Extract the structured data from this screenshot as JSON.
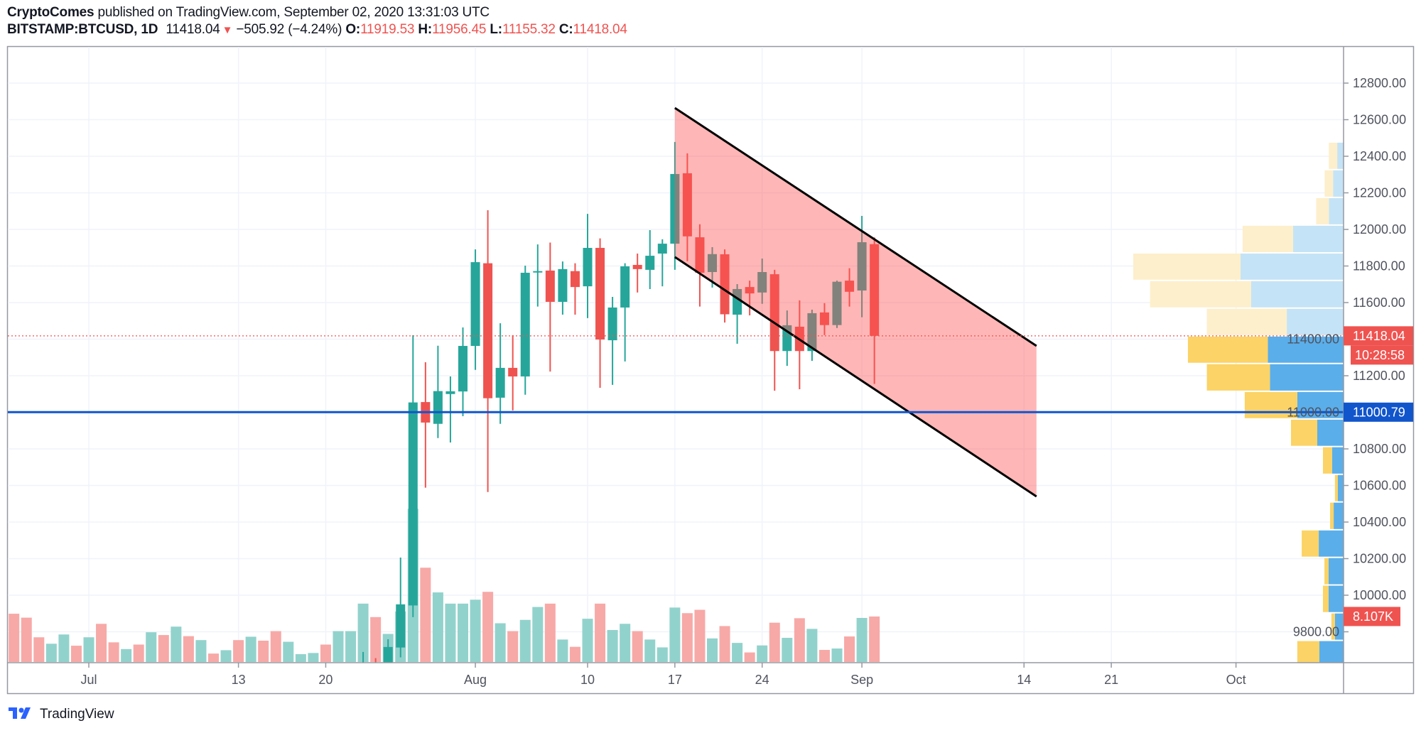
{
  "header": {
    "author": "CryptoComes",
    "published": "published on TradingView.com, September 02, 2020 13:31:03 UTC",
    "symbol": "BITSTAMP:BTCUSD, 1D",
    "last": "11418.04",
    "change_icon": "triangle-down-icon",
    "change": "−505.92 (−4.24%)",
    "o_label": "O:",
    "o": "11919.53",
    "h_label": "H:",
    "h": "11956.45",
    "l_label": "L:",
    "l": "11155.32",
    "c_label": "C:",
    "c": "11418.04"
  },
  "footer": {
    "brand": "TradingView",
    "logo_icon": "tradingview-logo-icon"
  },
  "colors": {
    "up": "#26a69a",
    "down": "#ef5350",
    "channel": "#ff5252",
    "support": "#1155cc",
    "profile_up": "#5aaeea",
    "profile_down": "#fbd366",
    "profile_up_light": "#c5e3f6",
    "profile_down_light": "#fdefcb"
  },
  "chart_data": {
    "type": "candlestick",
    "ylim": [
      9640,
      12990
    ],
    "xlim": [
      "2020-06-24",
      "2020-10-08"
    ],
    "grid": true,
    "price_ticks": [
      "12800.00",
      "12600.00",
      "12400.00",
      "12200.00",
      "12000.00",
      "11800.00",
      "11600.00",
      "11400.00",
      "11200.00",
      "11000.00",
      "10800.00",
      "10600.00",
      "10400.00",
      "10200.00",
      "10000.00",
      "9800.00"
    ],
    "time_ticks": [
      {
        "label": "Jul",
        "date": "2020-07-01"
      },
      {
        "label": "13",
        "date": "2020-07-13"
      },
      {
        "label": "20",
        "date": "2020-07-20"
      },
      {
        "label": "Aug",
        "date": "2020-08-01"
      },
      {
        "label": "10",
        "date": "2020-08-10"
      },
      {
        "label": "17",
        "date": "2020-08-17"
      },
      {
        "label": "24",
        "date": "2020-08-24"
      },
      {
        "label": "Sep",
        "date": "2020-09-01"
      },
      {
        "label": "14",
        "date": "2020-09-14"
      },
      {
        "label": "21",
        "date": "2020-09-21"
      },
      {
        "label": "Oct",
        "date": "2020-10-01"
      }
    ],
    "candles_columns": [
      "date",
      "open",
      "high",
      "low",
      "close"
    ],
    "candles": [
      [
        "2020-07-23",
        9510,
        9690,
        9400,
        9600
      ],
      [
        "2020-07-24",
        9600,
        9656,
        9500,
        9540
      ],
      [
        "2020-07-25",
        9540,
        9759,
        9450,
        9717
      ],
      [
        "2020-07-26",
        9714,
        10206,
        9660,
        9950
      ],
      [
        "2020-07-27",
        9944,
        11422,
        9880,
        11054
      ],
      [
        "2020-07-28",
        11056,
        11274,
        10588,
        10944
      ],
      [
        "2020-07-29",
        10937,
        11364,
        10859,
        11116
      ],
      [
        "2020-07-30",
        11100,
        11196,
        10835,
        11115
      ],
      [
        "2020-07-31",
        11114,
        11464,
        10979,
        11363
      ],
      [
        "2020-08-01",
        11363,
        11891,
        11232,
        11821
      ],
      [
        "2020-08-02",
        11815,
        12105,
        10564,
        11077
      ],
      [
        "2020-08-03",
        11080,
        11487,
        10937,
        11243
      ],
      [
        "2020-08-04",
        11243,
        11422,
        11010,
        11196
      ],
      [
        "2020-08-05",
        11196,
        11802,
        11096,
        11763
      ],
      [
        "2020-08-06",
        11767,
        11918,
        11578,
        11772
      ],
      [
        "2020-08-07",
        11775,
        11928,
        11223,
        11604
      ],
      [
        "2020-08-08",
        11604,
        11825,
        11534,
        11783
      ],
      [
        "2020-08-09",
        11772,
        11815,
        11534,
        11685
      ],
      [
        "2020-08-10",
        11689,
        12085,
        11515,
        11899
      ],
      [
        "2020-08-11",
        11899,
        11951,
        11134,
        11398
      ],
      [
        "2020-08-12",
        11394,
        11631,
        11150,
        11573
      ],
      [
        "2020-08-13",
        11573,
        11815,
        11278,
        11798
      ],
      [
        "2020-08-14",
        11806,
        11868,
        11655,
        11783
      ],
      [
        "2020-08-15",
        11779,
        11996,
        11674,
        11856
      ],
      [
        "2020-08-16",
        11868,
        11946,
        11689,
        11922
      ],
      [
        "2020-08-17",
        11922,
        12478,
        11779,
        12303
      ],
      [
        "2020-08-18",
        12307,
        12416,
        11826,
        11962
      ],
      [
        "2020-08-19",
        11957,
        12028,
        11578,
        11763
      ],
      [
        "2020-08-20",
        11767,
        11903,
        11682,
        11865
      ],
      [
        "2020-08-21",
        11864,
        11891,
        11491,
        11536
      ],
      [
        "2020-08-22",
        11534,
        11701,
        11375,
        11674
      ],
      [
        "2020-08-23",
        11685,
        11720,
        11530,
        11650
      ],
      [
        "2020-08-24",
        11655,
        11841,
        11593,
        11767
      ],
      [
        "2020-08-25",
        11755,
        11779,
        11118,
        11335
      ],
      [
        "2020-08-26",
        11335,
        11557,
        11254,
        11476
      ],
      [
        "2020-08-27",
        11468,
        11612,
        11126,
        11335
      ],
      [
        "2020-08-28",
        11335,
        11561,
        11281,
        11542
      ],
      [
        "2020-08-29",
        11546,
        11597,
        11422,
        11477
      ],
      [
        "2020-08-30",
        11477,
        11720,
        11461,
        11714
      ],
      [
        "2020-08-31",
        11720,
        11788,
        11578,
        11659
      ],
      [
        "2020-09-01",
        11666,
        12074,
        11520,
        11930
      ],
      [
        "2020-09-02",
        11919.53,
        11956.45,
        11155.32,
        11418.04
      ]
    ],
    "volume_unit": "K",
    "volumes_columns": [
      "date",
      "volume_k",
      "direction"
    ],
    "volumes": [
      [
        "2020-06-24",
        10.0,
        "down"
      ],
      [
        "2020-06-25",
        8.6,
        "down"
      ],
      [
        "2020-06-26",
        7.9,
        "down"
      ],
      [
        "2020-06-27",
        4.4,
        "down"
      ],
      [
        "2020-06-28",
        3.25,
        "up"
      ],
      [
        "2020-06-29",
        4.9,
        "up"
      ],
      [
        "2020-06-30",
        2.9,
        "down"
      ],
      [
        "2020-07-01",
        4.4,
        "up"
      ],
      [
        "2020-07-02",
        6.8,
        "down"
      ],
      [
        "2020-07-03",
        3.5,
        "down"
      ],
      [
        "2020-07-04",
        2.3,
        "up"
      ],
      [
        "2020-07-05",
        3.1,
        "down"
      ],
      [
        "2020-07-06",
        5.3,
        "up"
      ],
      [
        "2020-07-07",
        4.8,
        "down"
      ],
      [
        "2020-07-08",
        6.3,
        "up"
      ],
      [
        "2020-07-09",
        4.6,
        "down"
      ],
      [
        "2020-07-10",
        3.9,
        "up"
      ],
      [
        "2020-07-11",
        1.5,
        "down"
      ],
      [
        "2020-07-12",
        2.1,
        "up"
      ],
      [
        "2020-07-13",
        3.9,
        "down"
      ],
      [
        "2020-07-14",
        4.5,
        "up"
      ],
      [
        "2020-07-15",
        3.8,
        "down"
      ],
      [
        "2020-07-16",
        5.5,
        "down"
      ],
      [
        "2020-07-17",
        3.6,
        "up"
      ],
      [
        "2020-07-18",
        1.4,
        "up"
      ],
      [
        "2020-07-19",
        1.6,
        "up"
      ],
      [
        "2020-07-20",
        3.1,
        "down"
      ],
      [
        "2020-07-21",
        5.5,
        "up"
      ],
      [
        "2020-07-22",
        5.5,
        "up"
      ],
      [
        "2020-07-23",
        10.4,
        "up"
      ],
      [
        "2020-07-24",
        8.0,
        "down"
      ],
      [
        "2020-07-25",
        5.0,
        "up"
      ],
      [
        "2020-07-26",
        9.0,
        "up"
      ],
      [
        "2020-07-27",
        27.3,
        "up"
      ],
      [
        "2020-07-28",
        16.8,
        "down"
      ],
      [
        "2020-07-29",
        12.4,
        "up"
      ],
      [
        "2020-07-30",
        10.4,
        "up"
      ],
      [
        "2020-07-31",
        10.4,
        "up"
      ],
      [
        "2020-08-01",
        11.1,
        "up"
      ],
      [
        "2020-08-02",
        12.5,
        "down"
      ],
      [
        "2020-08-03",
        6.9,
        "up"
      ],
      [
        "2020-08-04",
        5.5,
        "down"
      ],
      [
        "2020-08-05",
        7.5,
        "up"
      ],
      [
        "2020-08-06",
        9.8,
        "up"
      ],
      [
        "2020-08-07",
        10.4,
        "down"
      ],
      [
        "2020-08-08",
        4.0,
        "up"
      ],
      [
        "2020-08-09",
        2.7,
        "down"
      ],
      [
        "2020-08-10",
        7.7,
        "up"
      ],
      [
        "2020-08-11",
        10.4,
        "down"
      ],
      [
        "2020-08-12",
        5.7,
        "up"
      ],
      [
        "2020-08-13",
        6.8,
        "up"
      ],
      [
        "2020-08-14",
        5.5,
        "down"
      ],
      [
        "2020-08-15",
        4.0,
        "up"
      ],
      [
        "2020-08-16",
        2.6,
        "up"
      ],
      [
        "2020-08-17",
        9.7,
        "up"
      ],
      [
        "2020-08-18",
        8.7,
        "down"
      ],
      [
        "2020-08-19",
        9.3,
        "down"
      ],
      [
        "2020-08-20",
        4.2,
        "up"
      ],
      [
        "2020-08-21",
        6.4,
        "down"
      ],
      [
        "2020-08-22",
        3.4,
        "up"
      ],
      [
        "2020-08-23",
        1.7,
        "down"
      ],
      [
        "2020-08-24",
        2.95,
        "up"
      ],
      [
        "2020-08-25",
        7.0,
        "down"
      ],
      [
        "2020-08-26",
        4.3,
        "up"
      ],
      [
        "2020-08-27",
        7.8,
        "down"
      ],
      [
        "2020-08-28",
        5.9,
        "up"
      ],
      [
        "2020-08-29",
        2.15,
        "down"
      ],
      [
        "2020-08-30",
        2.4,
        "up"
      ],
      [
        "2020-08-31",
        4.55,
        "down"
      ],
      [
        "2020-09-01",
        7.85,
        "up"
      ],
      [
        "2020-09-02",
        8.107,
        "down"
      ]
    ],
    "volume_profile_columns": [
      "price_low",
      "price_high",
      "up_volume_rel",
      "down_volume_rel",
      "in_value_area"
    ],
    "volume_profile": [
      [
        12327,
        12478,
        3,
        4,
        false
      ],
      [
        12175,
        12327,
        5,
        4,
        false
      ],
      [
        12024,
        12175,
        7,
        6,
        false
      ],
      [
        11872,
        12024,
        24,
        24,
        false
      ],
      [
        11721,
        11872,
        49,
        51,
        false
      ],
      [
        11570,
        11721,
        44,
        48,
        false
      ],
      [
        11418,
        11570,
        27,
        38,
        false
      ],
      [
        11267,
        11418,
        36,
        38,
        true
      ],
      [
        11115,
        11267,
        35,
        30,
        true
      ],
      [
        10964,
        11115,
        22,
        25,
        true
      ],
      [
        10813,
        10964,
        12.5,
        12.5,
        true
      ],
      [
        10661,
        10813,
        5.4,
        4.4,
        true
      ],
      [
        10510,
        10661,
        2.7,
        1.4,
        true
      ],
      [
        10358,
        10510,
        4.7,
        1.7,
        true
      ],
      [
        10207,
        10358,
        11.8,
        8.1,
        true
      ],
      [
        10056,
        10207,
        7.1,
        2.0,
        true
      ],
      [
        9904,
        10056,
        7.1,
        2.7,
        true
      ],
      [
        9753,
        9904,
        4.1,
        1.7,
        true
      ],
      [
        9601,
        9753,
        11.5,
        10.5,
        true
      ]
    ],
    "channel": {
      "upper": [
        [
          "2020-08-17",
          12664
        ],
        [
          "2020-09-15",
          11363
        ]
      ],
      "lower": [
        [
          "2020-08-17",
          11849
        ],
        [
          "2020-09-15",
          10540
        ]
      ]
    },
    "support_line": {
      "price": 11000.79,
      "label": "11000.79"
    },
    "last_price": {
      "price": 11418.04,
      "label": "11418.04",
      "countdown": "10:28:58"
    },
    "last_volume_label": "8.107K"
  }
}
